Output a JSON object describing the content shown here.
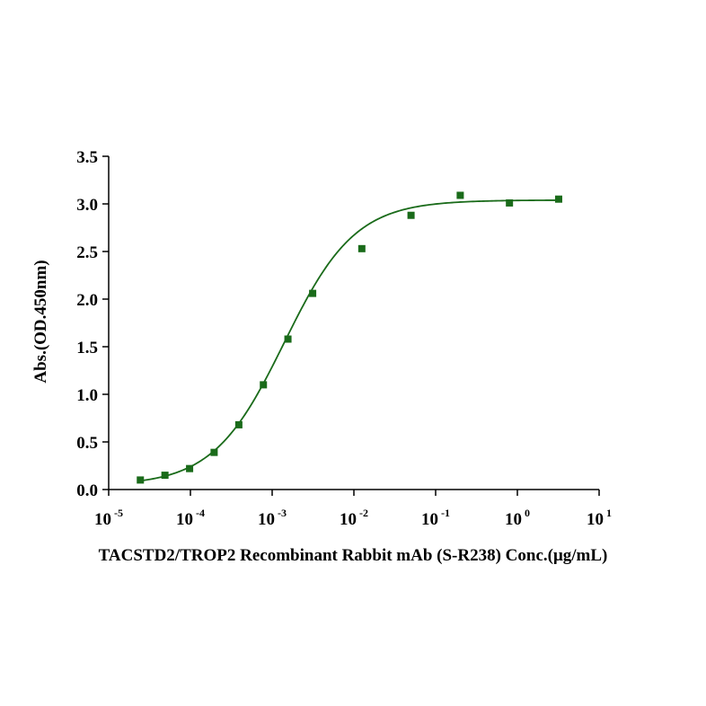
{
  "chart_data": {
    "type": "scatter",
    "xscale": "log",
    "xlabel": "TACSTD2/TROP2 Recombinant Rabbit mAb (S-R238) Conc.(μg/mL)",
    "ylabel": "Abs.(OD.450nm)",
    "xlim": [
      1e-05,
      10
    ],
    "ylim": [
      0,
      3.5
    ],
    "x_tick_labels": [
      {
        "base": "10",
        "exp": "-5"
      },
      {
        "base": "10",
        "exp": "-4"
      },
      {
        "base": "10",
        "exp": "-3"
      },
      {
        "base": "10",
        "exp": "-2"
      },
      {
        "base": "10",
        "exp": "-1"
      },
      {
        "base": "10",
        "exp": "0"
      },
      {
        "base": "10",
        "exp": "1"
      }
    ],
    "y_ticks": [
      0,
      0.5,
      1.0,
      1.5,
      2.0,
      2.5,
      3.0,
      3.5
    ],
    "y_tick_labels": [
      "0.0",
      "0.5",
      "1.0",
      "1.5",
      "2.0",
      "2.5",
      "3.0",
      "3.5"
    ],
    "grid": false,
    "color": "#1a6b1a",
    "series": [
      {
        "marker": "square",
        "x": [
          2.44e-05,
          4.88e-05,
          9.77e-05,
          0.000195,
          0.000391,
          0.000781,
          0.00156,
          0.00313,
          0.0125,
          0.05,
          0.2,
          0.8,
          3.2
        ],
        "y": [
          0.1,
          0.15,
          0.22,
          0.39,
          0.68,
          1.1,
          1.58,
          2.06,
          2.53,
          2.88,
          3.09,
          3.01,
          3.05
        ]
      }
    ],
    "fit_curve": {
      "model": "4PL",
      "bottom": 0.04,
      "top": 3.04,
      "ec50": 0.0014,
      "hill": 1.0
    }
  }
}
